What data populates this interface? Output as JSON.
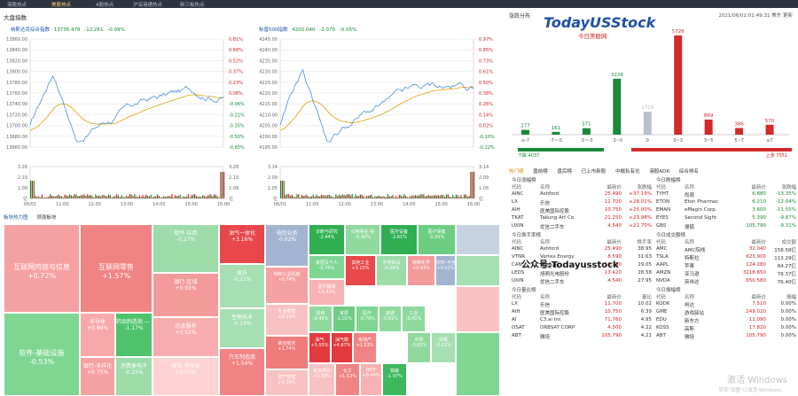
{
  "topnav": [
    "港股热点",
    "美股热点",
    "A股热点",
    "沪深港通热点",
    "新三板热点"
  ],
  "topnav_active": 1,
  "header": {
    "section": "大盘指数"
  },
  "index1": {
    "name": "纳斯达克综合指数",
    "value": "13736.478",
    "chg": "-12.261",
    "pct": "-0.09%",
    "yl": [
      "13860.00",
      "13840.00",
      "13820.00",
      "13800.00",
      "13780.00",
      "13760.00",
      "13740.00",
      "13720.00",
      "13700.00",
      "13680.00",
      "13660.00"
    ],
    "yr": [
      "0.81%",
      "0.66%",
      "0.52%",
      "0.37%",
      "0.23%",
      "0.08%",
      "-0.06%",
      "-0.21%",
      "-0.35%",
      "-0.50%",
      "-0.65%"
    ],
    "vl": [
      "3.28",
      "2.19",
      "1.09",
      "亿"
    ],
    "vr": [
      "3.28",
      "2.19",
      "1.09",
      "亿"
    ],
    "xt": [
      "06/01",
      "11:00",
      "12:00",
      "13:00",
      "14:00",
      "15:00",
      "16:00"
    ]
  },
  "index2": {
    "name": "标普500指数",
    "value": "4202.040",
    "chg": "-2.070",
    "pct": "-0.05%",
    "yl": [
      "4245.00",
      "4240.00",
      "4235.00",
      "4230.00",
      "4225.00",
      "4220.00",
      "4215.00",
      "4210.00",
      "4205.00",
      "4200.00",
      "4195.00"
    ],
    "yr": [
      "0.97%",
      "0.85%",
      "0.73%",
      "0.61%",
      "0.50%",
      "0.38%",
      "0.26%",
      "0.14%",
      "0.02%",
      "-0.10%",
      "-0.22%"
    ],
    "vl": [
      "3.14",
      "2.09",
      "1.05",
      "亿"
    ],
    "vr": [
      "3.14",
      "2.09",
      "1.05",
      "亿"
    ],
    "xt": [
      "06/01",
      "11:00",
      "12:00",
      "13:00",
      "14:00",
      "15:00",
      "16:00"
    ]
  },
  "treemap": {
    "tabs": [
      "板块热力图",
      "领涨板块"
    ],
    "cells": [
      {
        "n": "互联网内容与信息",
        "p": "+0.72%",
        "c": "#f6a1a1",
        "sz": "big"
      },
      {
        "n": "软件-基础设施",
        "p": "-0.53%",
        "c": "#7fd692",
        "sz": "big"
      },
      {
        "n": "互联网零售",
        "p": "+1.57%",
        "c": "#f08484",
        "sz": "big"
      },
      {
        "n": "半导体",
        "p": "+0.69%",
        "c": "#f7a9a9",
        "sz": "mid"
      },
      {
        "n": "银行-多样化",
        "p": "+0.75%",
        "c": "#f5a1a1",
        "sz": "mid"
      },
      {
        "n": "药品制造商 — 常规",
        "p": "-1.17%",
        "c": "#4fc26b",
        "sz": "mid"
      },
      {
        "n": "消费类电子",
        "p": "-0.25%",
        "c": "#9ddca9",
        "sz": "mid"
      },
      {
        "n": "软件-应用",
        "p": "-0.27%",
        "c": "#9ddca9",
        "sz": "mid"
      },
      {
        "n": "银行-区域",
        "p": "+0.93%",
        "c": "#f39b9b",
        "sz": "mid"
      },
      {
        "n": "信息服务",
        "p": "+0.52%",
        "c": "#f7adad",
        "sz": "mid"
      },
      {
        "n": "保险-多样化",
        "p": "+0.07%",
        "c": "#fcd2d2",
        "sz": "mid"
      },
      {
        "n": "油气一体化",
        "p": "+3.16%",
        "c": "#e8474b",
        "sz": "mid"
      },
      {
        "n": "娱乐",
        "p": "-0.21%",
        "c": "#a6dfb1",
        "sz": "mid"
      },
      {
        "n": "生物技术",
        "p": "-0.19%",
        "c": "#a6dfb1",
        "sz": "mid"
      },
      {
        "n": "汽车制造商",
        "p": "+1.54%",
        "c": "#f08484",
        "sz": "mid"
      },
      {
        "n": "电信业务",
        "p": "-0.02%",
        "c": "#a2b5d0",
        "sz": "mid"
      },
      {
        "n": "特种工业机械",
        "p": "+0.74%",
        "c": "#f5a1a1",
        "sz": "sm"
      },
      {
        "n": "专业零售",
        "p": "+0.16%",
        "c": "#f9c2c2",
        "sz": "sm"
      },
      {
        "n": "航空航天",
        "p": "+1.74%",
        "c": "#ef7b7b",
        "sz": "sm"
      },
      {
        "n": "资产管理",
        "p": "+0.16%",
        "c": "#f9c2c2",
        "sz": "sm"
      },
      {
        "n": "诊断与研究",
        "p": "-2.44%",
        "c": "#2faf52",
        "sz": "sm"
      },
      {
        "n": "家居及个人",
        "p": "-0.76%",
        "c": "#7fd692",
        "sz": "sm"
      },
      {
        "n": "医疗器械",
        "p": "+0.42%",
        "c": "#f7b3b3",
        "sz": "sm"
      },
      {
        "n": "公用事业-受",
        "p": "-0.46%",
        "c": "#8fd99e",
        "sz": "sm"
      },
      {
        "n": "医疗设备",
        "p": "-2.61%",
        "c": "#2faf52",
        "sz": "sm"
      },
      {
        "n": "医疗保健",
        "p": "-0.99%",
        "c": "#6ccd83",
        "sz": "sm"
      },
      {
        "n": "其他工业",
        "p": "+3.15%",
        "c": "#e8474b",
        "sz": "sm"
      },
      {
        "n": "半导体设",
        "p": "-0.28%",
        "c": "#9ddca9",
        "sz": "sm"
      },
      {
        "n": "特种化学",
        "p": "+0.93%",
        "c": "#f39b9b",
        "sz": "sm"
      },
      {
        "n": "饮料-不含",
        "p": "+0.02%",
        "c": "#a2b5d0",
        "sz": "sm"
      },
      {
        "n": "信用",
        "p": "-0.45%",
        "c": "#8fd99e",
        "sz": "sm"
      },
      {
        "n": "家居",
        "p": "-1.01%",
        "c": "#6ccd83",
        "sz": "sm"
      },
      {
        "n": "医疗",
        "p": "-0.79%",
        "c": "#7fd692",
        "sz": "sm"
      },
      {
        "n": "旅游",
        "p": "-0.61%",
        "c": "#8fd99e",
        "sz": "sm"
      },
      {
        "n": "工业",
        "p": "-0.41%",
        "c": "#8fd99e",
        "sz": "sm"
      },
      {
        "n": "油气",
        "p": "+5.55%",
        "c": "#e23a3e",
        "sz": "sm"
      },
      {
        "n": "油气勘",
        "p": "+4.87%",
        "c": "#e23a3e",
        "sz": "sm"
      },
      {
        "n": "房地产",
        "p": "+1.53%",
        "c": "#f08484",
        "sz": "sm"
      },
      {
        "n": "资本市场",
        "p": "+0.30%",
        "c": "#f9c2c2",
        "sz": "sm"
      },
      {
        "n": "化工",
        "p": "+1.53%",
        "c": "#f08484",
        "sz": "sm"
      },
      {
        "n": "REIT",
        "p": "+0.44%",
        "c": "#f7b3b3",
        "sz": "sm"
      },
      {
        "n": "铁路",
        "p": "-1.97%",
        "c": "#3db85d",
        "sz": "sm"
      },
      {
        "n": "中药",
        "p": "-0.65%",
        "c": "#8fd99e",
        "sz": "sm"
      },
      {
        "n": "快餐",
        "p": "-0.21%",
        "c": "#a6dfb1",
        "sz": "sm"
      }
    ]
  },
  "distribution": {
    "title": "涨跌分布",
    "time": "2021/06/02 01:49:31 美东 更新",
    "logo": "TodayUSStock",
    "logo_sub": "今日美股网",
    "chart_data": {
      "type": "bar",
      "categories": [
        "≤-7",
        "-7~-5",
        "-5~-3",
        "-3~0",
        "0",
        "0~3",
        "3~5",
        "5~7",
        "≥7"
      ],
      "values": [
        277,
        161,
        371,
        3228,
        1319,
        5726,
        869,
        386,
        570
      ]
    },
    "down": "下跌 4037",
    "up": "上涨 7551"
  },
  "tabs2": [
    "热门榜",
    "盘前榜",
    "盘后榜",
    "已上市新股",
    "中概私有化",
    "港股ADR",
    "综合排名"
  ],
  "panels": [
    {
      "title": "今日涨幅榜",
      "side": "L",
      "cols": [
        "代码",
        "名称",
        "最新价",
        "涨跌幅"
      ],
      "rows": [
        [
          "AINC",
          "Ashford",
          "25.490",
          "+37.19%"
        ],
        [
          "LX",
          "乐信",
          "11.700",
          "+28.01%"
        ],
        [
          "AIH",
          "医美国际控股",
          "10.750",
          "+25.00%"
        ],
        [
          "TKAT",
          "Takung Art Co",
          "21.250",
          "+23.98%"
        ],
        [
          "UXIN",
          "优信二手车",
          "4.540",
          "+22.70%"
        ]
      ]
    },
    {
      "title": "今日跌幅榜",
      "side": "R",
      "cols": [
        "代码",
        "名称",
        "最新价",
        "涨跌幅"
      ],
      "rows": [
        [
          "TYHT",
          "尚周",
          "6.880",
          "-13.35%"
        ],
        [
          "ETON",
          "Eton Pharmac",
          "6.210",
          "-12.04%"
        ],
        [
          "EMAN",
          "eMagin Corp.",
          "3.600",
          "-11.55%"
        ],
        [
          "EYES",
          "Second Sight",
          "5.390",
          "-9.87%"
        ],
        [
          "GBS",
          "搜狐",
          "105.790",
          "-9.31%"
        ]
      ]
    },
    {
      "title": "今日换手率榜",
      "side": "L",
      "cols": [
        "代码",
        "名称",
        "最新价",
        "换手率"
      ],
      "rows": [
        [
          "AINC",
          "Ashford",
          "25.490",
          "38.95"
        ],
        [
          "VTNR",
          "Vertex Energy",
          "8.590",
          "31.63"
        ],
        [
          "CAN",
          "嘉楠科技",
          "10.260",
          "29.05"
        ],
        [
          "LEDS",
          "旭明光电股份",
          "13.420",
          "28.58"
        ],
        [
          "UXIN",
          "优信二手车",
          "4.540",
          "27.95"
        ]
      ]
    },
    {
      "title": "今日成交额榜",
      "side": "R",
      "cols": [
        "代码",
        "名称",
        "最新价",
        "成交额"
      ],
      "rows": [
        [
          "AMC",
          "AMC院线",
          "32.040",
          "158.58亿"
        ],
        [
          "TSLA",
          "特斯拉",
          "623.900",
          "113.29亿"
        ],
        [
          "AAPL",
          "苹果",
          "124.280",
          "84.27亿"
        ],
        [
          "AMZN",
          "亚马逊",
          "3218.650",
          "78.37亿"
        ],
        [
          "NVDA",
          "英伟达",
          "650.580",
          "76.40亿"
        ]
      ]
    },
    {
      "title": "今日量比榜",
      "side": "L",
      "cols": [
        "代码",
        "名称",
        "最新价",
        "量比"
      ],
      "rows": [
        [
          "LX",
          "乐信",
          "11.700",
          "10.02"
        ],
        [
          "AIH",
          "医美国际控股",
          "10.750",
          "6.39"
        ],
        [
          "AI",
          "C3.ai Inc",
          "71.760",
          "4.95"
        ],
        [
          "OSAT",
          "ORBSAT CORP",
          "4.500",
          "4.22"
        ],
        [
          "ABT",
          "雅培",
          "105.790",
          "4.21"
        ]
      ]
    },
    {
      "title": "今日振幅榜",
      "side": "R",
      "cols": [
        "代码",
        "名称",
        "最新价",
        "振幅"
      ],
      "rows": [
        [
          "KODK",
          "柯达",
          "7.510",
          "0.00%"
        ],
        [
          "GME",
          "游戏驿站",
          "249.020",
          "0.00%"
        ],
        [
          "EDU",
          "新东方",
          "11.090",
          "0.00%"
        ],
        [
          "KOSS",
          "高斯",
          "17.820",
          "0.00%"
        ],
        [
          "ABT",
          "雅培",
          "105.790",
          "0.00%"
        ]
      ]
    }
  ],
  "overlay": {
    "wechat": "公众号:Todayusstock",
    "watermark": "激活 Windows",
    "watermark_sub": "转到\"设置\"以激活 Windows。"
  },
  "colors": {
    "up": "#d12020",
    "down": "#108a2e",
    "line": "#4a90d9",
    "avg": "#e0a000"
  }
}
